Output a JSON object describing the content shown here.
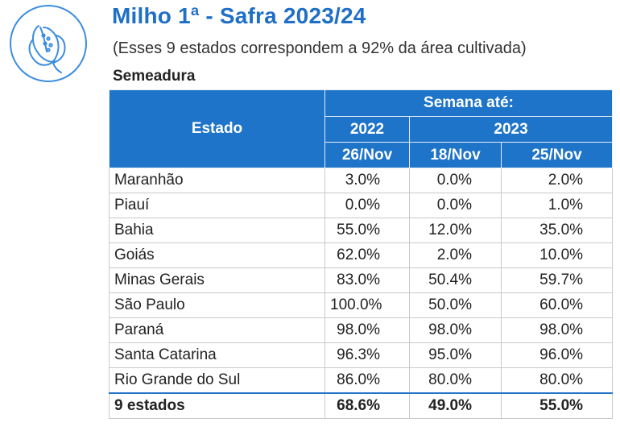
{
  "header": {
    "title": "Milho 1ª - Safra 2023/24",
    "subtitle": "(Esses 9 estados correspondem a 92% da área cultivada)",
    "section": "Semeadura",
    "icon": "corn-icon",
    "accent_color": "#1f6fc6"
  },
  "table": {
    "col_state": "Estado",
    "col_group": "Semana até:",
    "year_2022": "2022",
    "year_2023": "2023",
    "dates": [
      "26/Nov",
      "18/Nov",
      "25/Nov"
    ],
    "rows": [
      {
        "state": "Maranhão",
        "v": [
          "3.0%",
          "0.0%",
          "2.0%"
        ]
      },
      {
        "state": "Piauí",
        "v": [
          "0.0%",
          "0.0%",
          "1.0%"
        ]
      },
      {
        "state": "Bahia",
        "v": [
          "55.0%",
          "12.0%",
          "35.0%"
        ]
      },
      {
        "state": "Goiás",
        "v": [
          "62.0%",
          "2.0%",
          "10.0%"
        ]
      },
      {
        "state": "Minas Gerais",
        "v": [
          "83.0%",
          "50.4%",
          "59.7%"
        ]
      },
      {
        "state": "São Paulo",
        "v": [
          "100.0%",
          "50.0%",
          "60.0%"
        ]
      },
      {
        "state": "Paraná",
        "v": [
          "98.0%",
          "98.0%",
          "98.0%"
        ]
      },
      {
        "state": "Santa Catarina",
        "v": [
          "96.3%",
          "95.0%",
          "96.0%"
        ]
      },
      {
        "state": "Rio Grande do Sul",
        "v": [
          "86.0%",
          "80.0%",
          "80.0%"
        ]
      }
    ],
    "total": {
      "state": "9 estados",
      "v": [
        "68.6%",
        "49.0%",
        "55.0%"
      ]
    }
  }
}
